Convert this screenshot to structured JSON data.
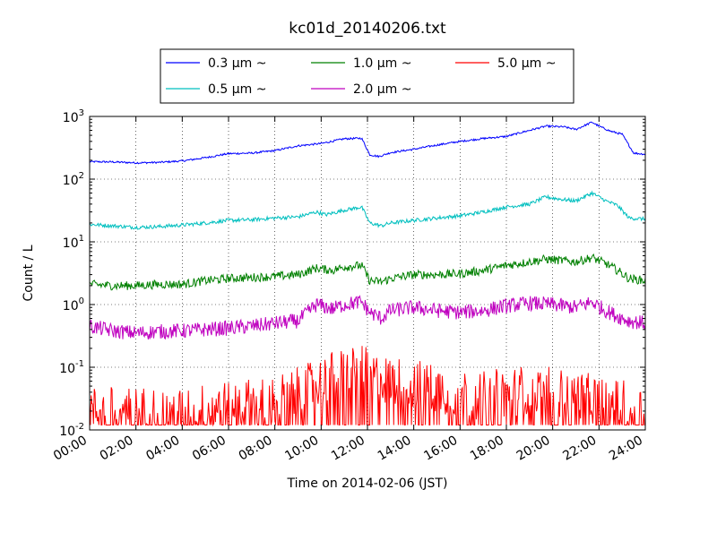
{
  "chart_data": {
    "type": "line",
    "title": "kc01d_20140206.txt",
    "xlabel": "Time on 2014-02-06 (JST)",
    "ylabel": "Count / L",
    "y_scale": "log",
    "ylim": [
      0.01,
      1000
    ],
    "xlim_hours": [
      0,
      24
    ],
    "grid": true,
    "legend_placement": "top-center, above plot",
    "x_tick_labels": [
      "00:00",
      "02:00",
      "04:00",
      "06:00",
      "08:00",
      "10:00",
      "12:00",
      "14:00",
      "16:00",
      "18:00",
      "20:00",
      "22:00",
      "24:00"
    ],
    "y_ticks": [
      {
        "base": "10",
        "exp": "-2"
      },
      {
        "base": "10",
        "exp": "-1"
      },
      {
        "base": "10",
        "exp": "0"
      },
      {
        "base": "10",
        "exp": "1"
      },
      {
        "base": "10",
        "exp": "2"
      },
      {
        "base": "10",
        "exp": "3"
      }
    ],
    "series": [
      {
        "name": "0.3 μm ~",
        "color": "#0000ff",
        "noise": 0.015,
        "points": [
          [
            0,
            190
          ],
          [
            1,
            188
          ],
          [
            2,
            182
          ],
          [
            3,
            185
          ],
          [
            4,
            195
          ],
          [
            5,
            220
          ],
          [
            6,
            255
          ],
          [
            7,
            260
          ],
          [
            8,
            285
          ],
          [
            9,
            340
          ],
          [
            10,
            370
          ],
          [
            11,
            440
          ],
          [
            11.75,
            450
          ],
          [
            12.1,
            245
          ],
          [
            12.5,
            230
          ],
          [
            13,
            265
          ],
          [
            14,
            300
          ],
          [
            15,
            350
          ],
          [
            16,
            400
          ],
          [
            17,
            445
          ],
          [
            18,
            480
          ],
          [
            19,
            600
          ],
          [
            19.7,
            700
          ],
          [
            20.5,
            680
          ],
          [
            21,
            620
          ],
          [
            21.7,
            810
          ],
          [
            22,
            700
          ],
          [
            22.5,
            580
          ],
          [
            23,
            520
          ],
          [
            23.5,
            260
          ],
          [
            24,
            250
          ]
        ]
      },
      {
        "name": "0.5 μm ~",
        "color": "#00bfbf",
        "noise": 0.03,
        "points": [
          [
            0,
            19
          ],
          [
            1,
            18
          ],
          [
            2,
            17
          ],
          [
            3,
            17.5
          ],
          [
            4,
            18.5
          ],
          [
            5,
            20
          ],
          [
            6,
            22
          ],
          [
            7,
            22.5
          ],
          [
            8,
            24
          ],
          [
            9,
            25
          ],
          [
            9.8,
            30
          ],
          [
            10.2,
            27
          ],
          [
            11,
            32
          ],
          [
            11.75,
            36
          ],
          [
            12.1,
            20
          ],
          [
            12.6,
            18
          ],
          [
            13,
            20
          ],
          [
            14,
            22
          ],
          [
            15,
            24
          ],
          [
            16,
            26
          ],
          [
            17,
            30
          ],
          [
            18,
            36
          ],
          [
            19,
            40
          ],
          [
            19.7,
            52
          ],
          [
            20.5,
            47
          ],
          [
            21,
            45
          ],
          [
            21.7,
            60
          ],
          [
            22.3,
            45
          ],
          [
            22.8,
            38
          ],
          [
            23.3,
            24
          ],
          [
            24,
            23
          ]
        ]
      },
      {
        "name": "1.0 μm ~",
        "color": "#008000",
        "noise": 0.07,
        "points": [
          [
            0,
            2.1
          ],
          [
            1,
            2.0
          ],
          [
            2,
            2.0
          ],
          [
            3,
            2.1
          ],
          [
            4,
            2.1
          ],
          [
            5,
            2.4
          ],
          [
            6,
            2.6
          ],
          [
            7,
            2.7
          ],
          [
            8,
            2.8
          ],
          [
            9,
            3.0
          ],
          [
            9.8,
            3.8
          ],
          [
            10.5,
            3.5
          ],
          [
            11,
            4.0
          ],
          [
            11.75,
            4.2
          ],
          [
            12.1,
            2.4
          ],
          [
            12.6,
            2.3
          ],
          [
            13,
            2.6
          ],
          [
            14,
            3.0
          ],
          [
            15,
            3.0
          ],
          [
            16,
            3.1
          ],
          [
            17,
            3.5
          ],
          [
            18,
            4.2
          ],
          [
            19,
            4.8
          ],
          [
            19.7,
            5.3
          ],
          [
            20.5,
            5.0
          ],
          [
            21,
            4.8
          ],
          [
            21.7,
            5.6
          ],
          [
            22.3,
            4.5
          ],
          [
            22.8,
            3.5
          ],
          [
            23.3,
            2.6
          ],
          [
            24,
            2.4
          ]
        ]
      },
      {
        "name": "2.0 μm ~",
        "color": "#bf00bf",
        "noise": 0.12,
        "points": [
          [
            0,
            0.45
          ],
          [
            1,
            0.38
          ],
          [
            2,
            0.35
          ],
          [
            3,
            0.37
          ],
          [
            4,
            0.38
          ],
          [
            5,
            0.4
          ],
          [
            6,
            0.42
          ],
          [
            7,
            0.45
          ],
          [
            8,
            0.5
          ],
          [
            9,
            0.55
          ],
          [
            9.8,
            1.0
          ],
          [
            10.5,
            0.85
          ],
          [
            11,
            1.0
          ],
          [
            11.75,
            1.1
          ],
          [
            12.1,
            0.75
          ],
          [
            12.6,
            0.6
          ],
          [
            13,
            0.8
          ],
          [
            14,
            0.9
          ],
          [
            15,
            0.8
          ],
          [
            16,
            0.75
          ],
          [
            17,
            0.8
          ],
          [
            18,
            0.95
          ],
          [
            19,
            1.05
          ],
          [
            20,
            1.0
          ],
          [
            21,
            0.9
          ],
          [
            21.7,
            1.1
          ],
          [
            22.3,
            0.8
          ],
          [
            22.8,
            0.65
          ],
          [
            23.3,
            0.55
          ],
          [
            24,
            0.5
          ]
        ]
      },
      {
        "name": "5.0 μm ~",
        "color": "#ff0000",
        "noise": 0.4,
        "floor": 0.012,
        "points": [
          [
            0,
            0.02
          ],
          [
            2,
            0.02
          ],
          [
            4,
            0.02
          ],
          [
            6,
            0.025
          ],
          [
            8,
            0.03
          ],
          [
            9,
            0.04
          ],
          [
            10,
            0.06
          ],
          [
            11,
            0.09
          ],
          [
            11.75,
            0.1
          ],
          [
            12.2,
            0.07
          ],
          [
            13,
            0.06
          ],
          [
            14,
            0.055
          ],
          [
            15,
            0.045
          ],
          [
            16,
            0.04
          ],
          [
            17,
            0.035
          ],
          [
            18,
            0.04
          ],
          [
            19,
            0.045
          ],
          [
            20,
            0.04
          ],
          [
            21,
            0.035
          ],
          [
            22,
            0.03
          ],
          [
            23,
            0.025
          ],
          [
            24,
            0.02
          ]
        ]
      }
    ]
  }
}
